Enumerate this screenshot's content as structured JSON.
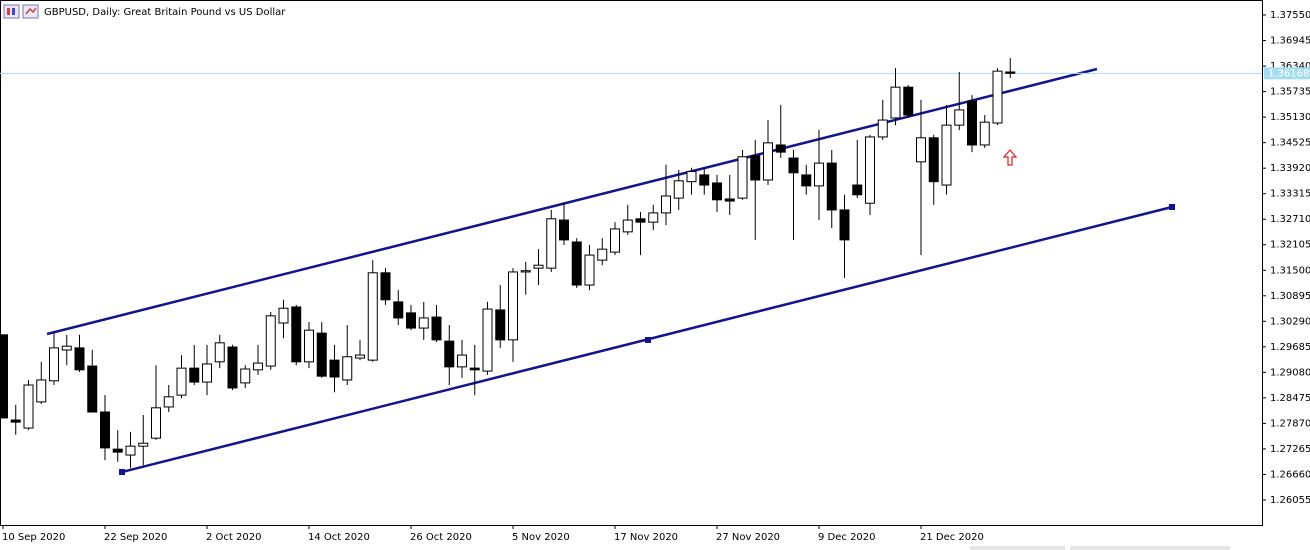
{
  "chart_data": {
    "type": "candlestick",
    "title": "GBPUSD, Daily:  Great Britain Pound vs US Dollar",
    "categories": [
      "10 Sep 2020",
      null,
      null,
      null,
      null,
      null,
      null,
      null,
      "22 Sep 2020",
      null,
      null,
      null,
      null,
      null,
      null,
      null,
      "2 Oct 2020",
      null,
      null,
      null,
      null,
      null,
      null,
      null,
      "14 Oct 2020",
      null,
      null,
      null,
      null,
      null,
      null,
      null,
      "26 Oct 2020",
      null,
      null,
      null,
      null,
      null,
      null,
      null,
      "5 Nov 2020",
      null,
      null,
      null,
      null,
      null,
      null,
      null,
      "17 Nov 2020",
      null,
      null,
      null,
      null,
      null,
      null,
      null,
      "27 Nov 2020",
      null,
      null,
      null,
      null,
      null,
      null,
      null,
      "9 Dec 2020",
      null,
      null,
      null,
      null,
      null,
      null,
      null,
      "21 Dec 2020",
      null,
      null,
      null,
      null,
      null,
      null,
      null
    ],
    "open": [
      1.2997,
      1.2795,
      1.2776,
      1.2838,
      1.2888,
      1.2961,
      1.2966,
      1.2923,
      1.2814,
      1.2726,
      1.2712,
      1.2733,
      1.2752,
      1.2826,
      1.2854,
      1.2918,
      1.2885,
      1.2933,
      1.2968,
      1.2883,
      1.2914,
      1.2923,
      1.3025,
      1.3063,
      1.2933,
      1.3001,
      1.2937,
      1.289,
      1.2942,
      1.2937,
      1.3144,
      1.3075,
      1.3049,
      1.3013,
      1.3039,
      1.2982,
      1.2921,
      1.2918,
      1.2911,
      1.3056,
      1.2985,
      1.3146,
      1.3155,
      1.3155,
      1.3269,
      1.3217,
      1.3115,
      1.3174,
      1.3193,
      1.3241,
      1.3272,
      1.3264,
      1.3286,
      1.3321,
      1.336,
      1.3376,
      1.3357,
      1.3319,
      1.3321,
      1.3421,
      1.3364,
      1.3447,
      1.3416,
      1.3376,
      1.335,
      1.3404,
      1.3293,
      1.3352,
      1.3309,
      1.3466,
      1.3511,
      1.3584,
      1.3407,
      1.3464,
      1.3352,
      1.3494,
      1.3551,
      1.3447,
      1.3499,
      1.362
    ],
    "high": [
      1.2997,
      1.2831,
      1.289,
      1.2933,
      1.3001,
      1.2997,
      1.2997,
      1.2961,
      1.2854,
      1.2771,
      1.2767,
      1.2807,
      1.2925,
      1.2878,
      1.2949,
      1.2973,
      1.2973,
      1.2997,
      1.2973,
      1.2925,
      1.2973,
      1.3051,
      1.308,
      1.3068,
      1.3027,
      1.3027,
      1.2973,
      1.302,
      1.2985,
      1.3174,
      1.3155,
      1.3103,
      1.3068,
      1.3075,
      1.3068,
      1.302,
      1.2985,
      1.2973,
      1.3075,
      1.3115,
      1.3155,
      1.317,
      1.32,
      1.3293,
      1.331,
      1.3226,
      1.321,
      1.3226,
      1.3264,
      1.3305,
      1.3288,
      1.3305,
      1.34,
      1.3388,
      1.3393,
      1.3393,
      1.3376,
      1.3376,
      1.3435,
      1.3459,
      1.3506,
      1.3542,
      1.3435,
      1.34,
      1.3483,
      1.3435,
      1.3329,
      1.3459,
      1.3471,
      1.3554,
      1.3629,
      1.3589,
      1.3554,
      1.3471,
      1.3542,
      1.362,
      1.3565,
      1.3518,
      1.3629,
      1.3653
    ],
    "low": [
      1.28,
      1.276,
      1.2771,
      1.2833,
      1.2878,
      1.2925,
      1.2909,
      1.2814,
      1.27,
      1.2696,
      1.2681,
      1.2688,
      1.2748,
      1.2814,
      1.2847,
      1.2878,
      1.2854,
      1.2918,
      1.2866,
      1.2871,
      1.2902,
      1.2914,
      1.2989,
      1.2925,
      1.2918,
      1.2895,
      1.2861,
      1.2878,
      1.2937,
      1.2933,
      1.3068,
      1.302,
      1.3008,
      1.2985,
      1.298,
      1.2878,
      1.2895,
      1.2854,
      1.2902,
      1.2966,
      1.2933,
      1.3092,
      1.3115,
      1.3146,
      1.321,
      1.3108,
      1.3103,
      1.3162,
      1.3186,
      1.3234,
      1.3186,
      1.3245,
      1.3257,
      1.3293,
      1.3329,
      1.3329,
      1.3288,
      1.3281,
      1.3317,
      1.3222,
      1.3352,
      1.3416,
      1.3222,
      1.3329,
      1.3269,
      1.325,
      1.3132,
      1.3321,
      1.3281,
      1.3459,
      1.3494,
      1.3511,
      1.3186,
      1.3305,
      1.3329,
      1.3482,
      1.343,
      1.344,
      1.3494,
      1.3606
    ],
    "close": [
      1.28,
      1.279,
      1.2878,
      1.289,
      1.2966,
      1.297,
      1.2914,
      1.2814,
      1.2729,
      1.2719,
      1.2733,
      1.274,
      1.2824,
      1.285,
      1.2918,
      1.2885,
      1.2928,
      1.2978,
      1.2871,
      1.2916,
      1.293,
      1.3042,
      1.306,
      1.2933,
      1.3008,
      1.2899,
      1.2897,
      1.2945,
      1.2949,
      1.3144,
      1.308,
      1.3037,
      1.3013,
      1.3037,
      1.2985,
      1.2921,
      1.2949,
      1.2914,
      1.3058,
      1.2985,
      1.3146,
      1.3149,
      1.3162,
      1.3272,
      1.3222,
      1.3115,
      1.3186,
      1.32,
      1.3248,
      1.3269,
      1.3264,
      1.3286,
      1.3326,
      1.3362,
      1.3384,
      1.3352,
      1.3317,
      1.3314,
      1.3419,
      1.3364,
      1.3452,
      1.343,
      1.3381,
      1.335,
      1.3404,
      1.3293,
      1.3222,
      1.3329,
      1.3466,
      1.3506,
      1.3584,
      1.3518,
      1.3464,
      1.336,
      1.3494,
      1.353,
      1.3447,
      1.3501,
      1.3622,
      1.36168
    ],
    "up_color": "#ffffff",
    "down_color": "#000000",
    "outline_color": "#000000",
    "current_price": 1.36168,
    "current_price_color": "#a6dcf0",
    "ylim": [
      1.25462,
      1.37906
    ],
    "yticks": [
      {
        "value": 1.3755,
        "label": "1.37550"
      },
      1.36945,
      {
        "value": 1.3634,
        "label": "1.36340"
      },
      1.35735,
      {
        "value": 1.3513,
        "label": "1.35130"
      },
      1.34525,
      {
        "value": 1.3392,
        "label": "1.33920"
      },
      1.33315,
      {
        "value": 1.3271,
        "label": "1.32710"
      },
      1.32105,
      {
        "value": 1.315,
        "label": "1.31500"
      },
      1.30895,
      {
        "value": 1.3029,
        "label": "1.30290"
      },
      1.29685,
      {
        "value": 1.2908,
        "label": "1.29080"
      },
      1.28475,
      {
        "value": 1.2787,
        "label": "1.27870"
      },
      1.27265,
      {
        "value": 1.2666,
        "label": "1.26660"
      },
      1.26055
    ],
    "grid": false
  }
}
